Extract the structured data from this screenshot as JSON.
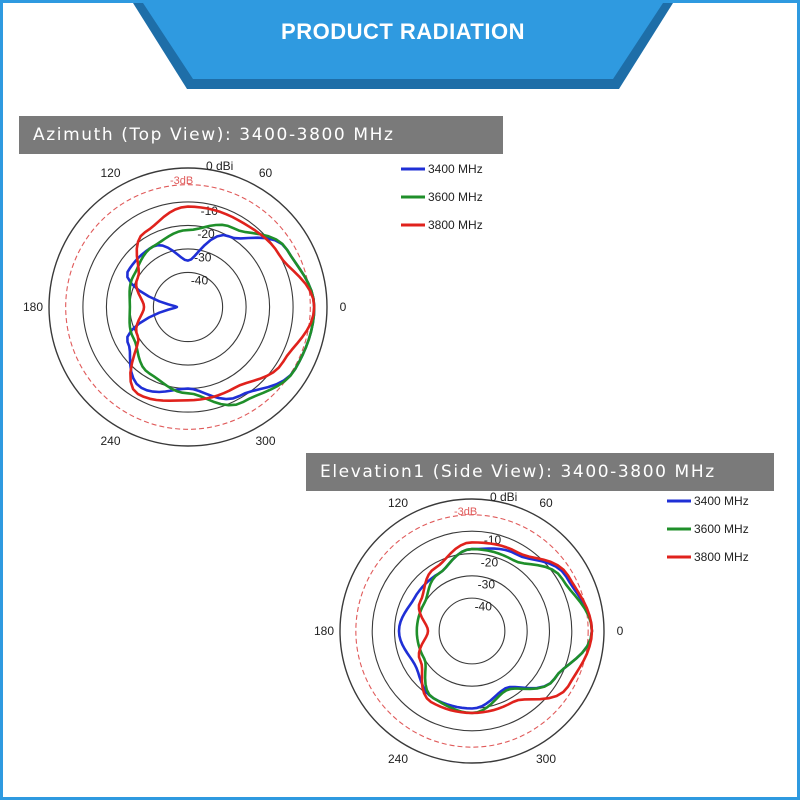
{
  "banner": {
    "title": "PRODUCT RADIATION"
  },
  "colors": {
    "banner_fill": "#2f9ae0",
    "banner_shadow": "#1e6ea8",
    "header_bg": "#7a7a7a",
    "ring": "#3a3a3a",
    "ref_ring": "#e05a5a",
    "s3400": "#1f2fd6",
    "s3600": "#1f8f2a",
    "s3800": "#e0221c"
  },
  "chart_data": [
    {
      "type": "polar",
      "title": "Azimuth (Top View): 3400-3800 MHz",
      "radial_unit": "0 dBi",
      "ref_ring_label": "-3dB",
      "ring_labels": [
        "-10",
        "-20",
        "-30",
        "-40"
      ],
      "angle_labels": [
        "120",
        "60",
        "180",
        "0",
        "240",
        "300"
      ],
      "angles_deg": [
        0,
        30,
        60,
        90,
        120,
        150,
        180,
        210,
        240,
        270,
        300,
        330
      ],
      "series": [
        {
          "name": "3400 MHz",
          "gain_db": [
            -1,
            -6,
            -20,
            -35,
            -25,
            -25,
            -50,
            -25,
            -15,
            -20,
            -11,
            -2
          ]
        },
        {
          "name": "3600 MHz",
          "gain_db": [
            -1,
            -6,
            -16,
            -22,
            -25,
            -28,
            -30,
            -28,
            -22,
            -18,
            -8,
            -2
          ]
        },
        {
          "name": "3800 MHz",
          "gain_db": [
            -1,
            -10,
            -12,
            -12,
            -18,
            -30,
            -36,
            -30,
            -12,
            -15,
            -15,
            -8
          ]
        }
      ]
    },
    {
      "type": "polar",
      "title": "Elevation1 (Side View): 3400-3800 MHz",
      "radial_unit": "0 dBi",
      "ref_ring_label": "-3dB",
      "ring_labels": [
        "-10",
        "-20",
        "-30",
        "-40"
      ],
      "angle_labels": [
        "120",
        "60",
        "180",
        "0",
        "240",
        "300"
      ],
      "angles_deg": [
        0,
        30,
        60,
        90,
        120,
        150,
        180,
        210,
        240,
        270,
        300,
        330
      ],
      "series": [
        {
          "name": "3400 MHz",
          "gain_db": [
            -1,
            -6,
            -15,
            -18,
            -25,
            -25,
            -22,
            -25,
            -20,
            -20,
            -25,
            -12
          ]
        },
        {
          "name": "3600 MHz",
          "gain_db": [
            -1,
            -8,
            -18,
            -18,
            -25,
            -30,
            -30,
            -30,
            -20,
            -18,
            -24,
            -12
          ]
        },
        {
          "name": "3800 MHz",
          "gain_db": [
            -1,
            -5,
            -14,
            -15,
            -22,
            -28,
            -35,
            -28,
            -18,
            -18,
            -18,
            -5
          ]
        }
      ]
    }
  ]
}
